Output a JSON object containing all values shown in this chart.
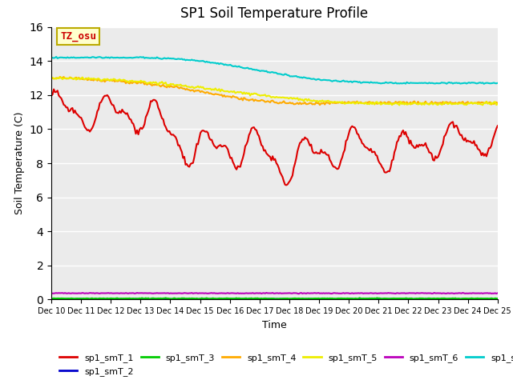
{
  "title": "SP1 Soil Temperature Profile",
  "xlabel": "Time",
  "ylabel": "Soil Temperature (C)",
  "annotation_text": "TZ_osu",
  "annotation_color": "#cc0000",
  "annotation_bg": "#ffffcc",
  "annotation_border": "#bbaa00",
  "ylim": [
    0,
    16
  ],
  "yticks": [
    0,
    2,
    4,
    6,
    8,
    10,
    12,
    14,
    16
  ],
  "xtick_labels": [
    "Dec 10",
    "Dec 11",
    "Dec 12",
    "Dec 13",
    "Dec 14",
    "Dec 15",
    "Dec 16",
    "Dec 17",
    "Dec 18",
    "Dec 19",
    "Dec 20",
    "Dec 21",
    "Dec 22",
    "Dec 23",
    "Dec 24",
    "Dec 25"
  ],
  "series_colors": {
    "sp1_smT_1": "#dd0000",
    "sp1_smT_2": "#0000cc",
    "sp1_smT_3": "#00cc00",
    "sp1_smT_4": "#ffaa00",
    "sp1_smT_5": "#eeee00",
    "sp1_smT_6": "#bb00bb",
    "sp1_smT_7": "#00cccc"
  },
  "background_color": "#ebebeb",
  "grid_color": "#ffffff",
  "fig_bg": "#ffffff"
}
